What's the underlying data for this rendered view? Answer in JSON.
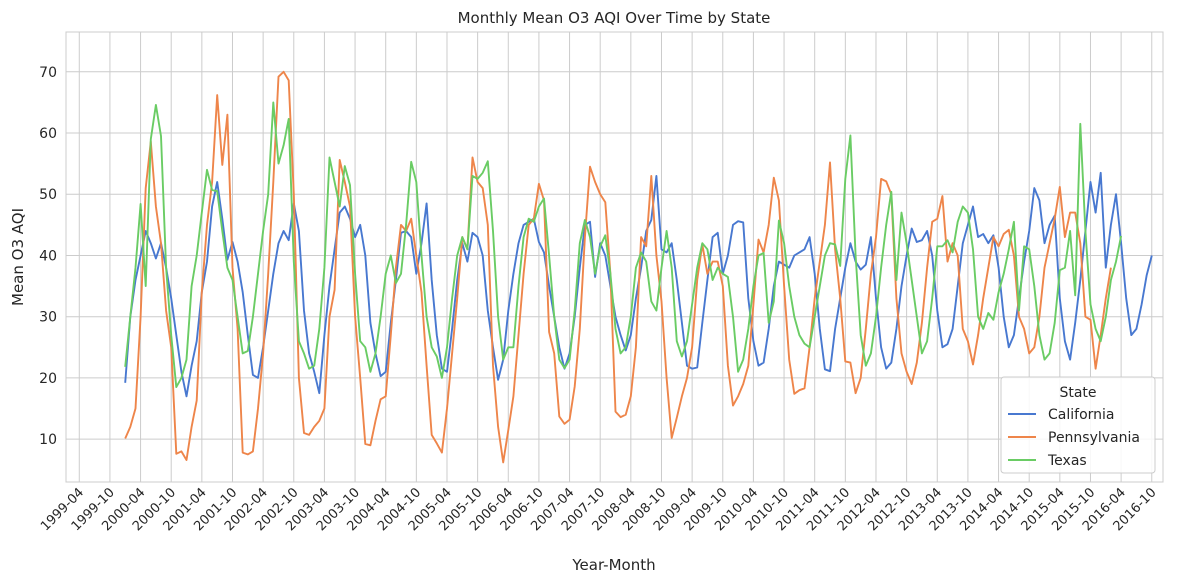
{
  "chart_data": {
    "type": "line",
    "title": "Monthly Mean O3 AQI Over Time by State",
    "xlabel": "Year-Month",
    "ylabel": "Mean O3 AQI",
    "grid": true,
    "legend": {
      "title": "State",
      "placement": "lower-right"
    },
    "x_ticks": [
      "1999-04",
      "1999-10",
      "2000-04",
      "2000-10",
      "2001-04",
      "2001-10",
      "2002-04",
      "2002-10",
      "2003-04",
      "2003-10",
      "2004-04",
      "2004-10",
      "2005-04",
      "2005-10",
      "2006-04",
      "2006-10",
      "2007-04",
      "2007-10",
      "2008-04",
      "2008-10",
      "2009-04",
      "2009-10",
      "2010-04",
      "2010-10",
      "2011-04",
      "2011-10",
      "2012-04",
      "2012-10",
      "2013-04",
      "2013-10",
      "2014-04",
      "2014-10",
      "2015-04",
      "2015-10",
      "2016-04",
      "2016-10"
    ],
    "y_ticks": [
      10,
      20,
      30,
      40,
      50,
      60,
      70
    ],
    "xlim": [
      "1999-01",
      "2016-12"
    ],
    "ylim": [
      3,
      76.5
    ],
    "x_start": "2000-01",
    "series": [
      {
        "name": "California",
        "color": "#4878d0",
        "values": [
          19.2,
          30,
          36,
          40,
          44,
          42,
          39.5,
          42,
          38,
          33,
          27,
          21,
          17,
          22,
          26,
          34,
          39,
          48,
          52,
          46,
          39.3,
          42.2,
          39,
          34,
          27,
          20.5,
          20,
          25,
          31,
          37,
          42,
          44,
          42.5,
          48.5,
          44,
          31,
          24,
          21,
          17.5,
          27,
          35,
          41,
          47,
          48,
          46,
          43,
          45,
          40,
          29,
          24,
          20.3,
          21,
          29,
          36,
          43.7,
          44,
          43,
          37,
          42,
          48.5,
          36,
          27,
          21.5,
          21,
          28,
          36,
          42,
          39,
          43.7,
          43,
          40,
          31,
          25,
          19.7,
          23,
          31,
          37,
          42,
          45,
          45.5,
          46,
          42.2,
          40.5,
          35,
          30,
          25,
          21.5,
          24,
          30,
          38,
          45,
          45.5,
          36.5,
          42,
          40,
          35,
          30,
          27,
          24.5,
          27,
          33,
          38,
          44,
          45.8,
          53,
          41,
          40.5,
          42,
          36,
          29,
          22,
          21.5,
          21.7,
          29,
          36,
          43,
          43.7,
          37,
          40,
          45,
          45.6,
          45.4,
          33,
          26,
          22,
          22.5,
          28,
          35,
          39,
          38.5,
          38,
          40,
          40.5,
          41,
          43,
          37,
          28,
          21.4,
          21.1,
          28,
          33,
          38,
          42,
          39,
          37.7,
          38.5,
          43,
          33,
          25,
          21.5,
          22.5,
          28,
          35,
          40,
          44.4,
          42.2,
          42.5,
          44,
          40,
          31,
          25,
          25.5,
          28,
          35,
          42,
          45,
          48,
          43,
          43.5,
          42,
          43.3,
          38,
          30,
          25,
          27,
          33,
          39,
          44,
          51,
          49,
          42,
          45,
          46.5,
          33,
          26,
          23,
          29,
          36,
          44,
          52,
          47,
          53.5,
          38,
          45,
          50,
          42,
          33,
          27,
          28,
          32,
          36.8,
          40
        ]
      },
      {
        "name": "Pennsylvania",
        "color": "#ee854a",
        "values": [
          10.1,
          12,
          15,
          30,
          51,
          58.6,
          48,
          42,
          31,
          25,
          7.6,
          8,
          6.6,
          12,
          16.3,
          34,
          45,
          52,
          66.2,
          54.8,
          63,
          38,
          28,
          7.8,
          7.5,
          8,
          15,
          24,
          37,
          52,
          69.2,
          70,
          68.6,
          50,
          20,
          11,
          10.7,
          12,
          13,
          15,
          30,
          34.4,
          55.6,
          52,
          48,
          30,
          20,
          9.2,
          9,
          13,
          16.5,
          17,
          27,
          38,
          45,
          44,
          46,
          40,
          34,
          22,
          10.7,
          9.3,
          7.8,
          15,
          24,
          33,
          43,
          41,
          56,
          52,
          51,
          45,
          22,
          12,
          6.2,
          11.5,
          17,
          27,
          37,
          45,
          46,
          51.7,
          49,
          27.5,
          24,
          13.7,
          12.5,
          13.2,
          18.6,
          28,
          43,
          54.5,
          52,
          50,
          48.7,
          37,
          14.5,
          13.6,
          14,
          17,
          25,
          43,
          41.5,
          53,
          40,
          32.5,
          20,
          10.2,
          13.5,
          17,
          20,
          25,
          36,
          41.8,
          37,
          39,
          39,
          35,
          22,
          15.5,
          17,
          19,
          22,
          32,
          42.6,
          40.5,
          45,
          52.7,
          49,
          35,
          23,
          17.4,
          18,
          18.3,
          25,
          33,
          39,
          45,
          55.2,
          41,
          33,
          22.7,
          22.5,
          17.5,
          20,
          28,
          37,
          43,
          52.5,
          52.1,
          50,
          33,
          24,
          21,
          19,
          22.5,
          29,
          38,
          45.5,
          46,
          49.7,
          39,
          42,
          40,
          28,
          26,
          22.2,
          27,
          33,
          38,
          43,
          41.5,
          43.5,
          44.2,
          40,
          30,
          28,
          24,
          25,
          30,
          38,
          42,
          46,
          51.2,
          43,
          47,
          47,
          42,
          30,
          29.5,
          21.5,
          27,
          33,
          38
        ]
      },
      {
        "name": "Texas",
        "color": "#6acc64",
        "values": [
          21.8,
          30,
          38,
          48.4,
          35,
          59,
          64.6,
          59.5,
          38,
          27,
          18.5,
          20,
          23,
          35,
          40,
          47,
          54,
          50.7,
          50.5,
          44,
          38,
          36,
          30,
          24,
          24.4,
          30,
          37,
          44,
          50,
          65,
          55,
          58,
          62.3,
          39,
          26,
          24,
          21.5,
          22,
          28,
          38,
          56,
          52,
          48,
          54.6,
          51.5,
          37,
          26,
          25,
          21,
          24,
          30,
          37,
          40,
          35.5,
          37,
          45,
          55.3,
          52,
          40,
          30,
          25,
          23.5,
          20,
          25,
          33,
          40,
          43,
          41,
          53,
          52.5,
          53.5,
          55.4,
          44,
          30,
          23,
          25,
          25,
          35,
          43,
          46,
          45.5,
          48,
          49.3,
          40,
          30,
          23,
          21.6,
          23,
          31,
          42,
          45.8,
          43,
          37,
          41.5,
          43.3,
          37,
          28,
          24,
          25,
          30,
          38,
          40.5,
          39,
          32.5,
          31,
          38,
          44,
          38,
          26,
          23.5,
          26,
          32,
          38,
          42,
          41,
          36,
          38,
          37,
          36.5,
          30,
          21,
          23,
          28,
          35,
          40,
          40.4,
          29,
          32.5,
          45.7,
          42,
          35,
          30,
          27,
          25.6,
          25,
          30,
          35,
          40,
          42,
          41.8,
          38.3,
          52.5,
          59.6,
          40,
          27,
          22,
          24,
          30,
          38,
          45,
          50.4,
          36,
          47,
          42,
          36,
          30,
          24,
          26,
          33,
          41.5,
          41.5,
          42.5,
          40.5,
          45.5,
          48,
          47,
          41,
          30,
          28,
          30.6,
          29.5,
          34,
          37,
          41,
          45.5,
          31,
          41.5,
          41,
          35,
          27,
          23,
          24,
          29,
          37.6,
          38,
          44,
          33.5,
          61.5,
          44,
          32,
          28,
          26,
          30,
          36,
          39,
          43.2
        ]
      }
    ]
  }
}
